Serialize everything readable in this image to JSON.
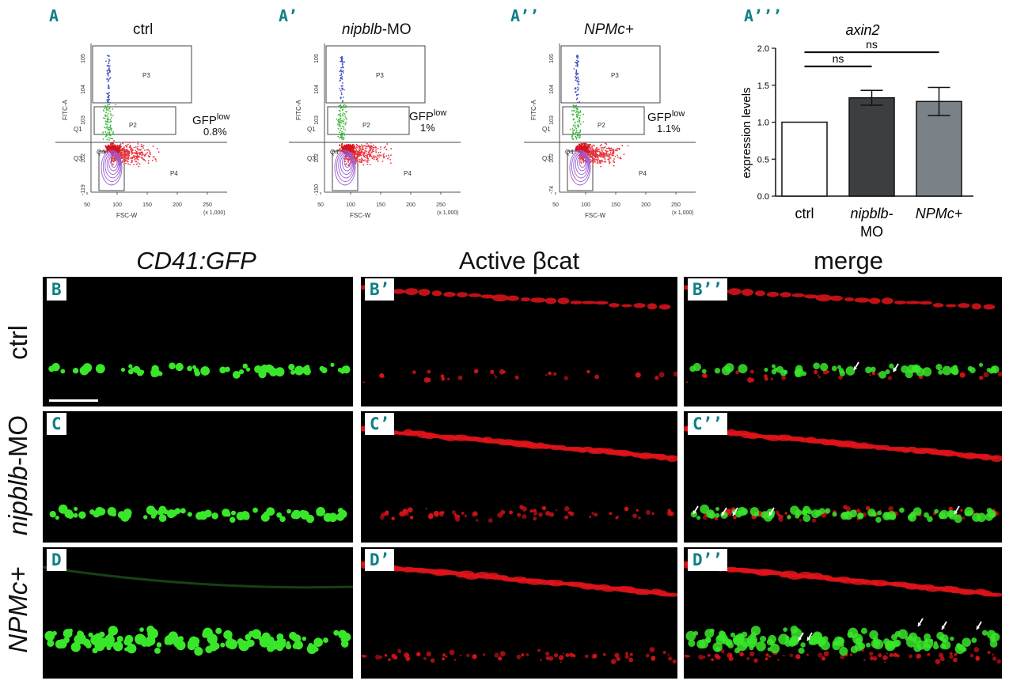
{
  "flow_panels": [
    {
      "label": "A",
      "title": "ctrl",
      "italic": false,
      "gfp_text": "GFP",
      "gfp_sup": "low",
      "pct": "0.8%",
      "y_axis": "FITC-A",
      "x_axis": "FSC-W",
      "x_scale": "(x 1,000)",
      "y_ticks": [
        "10^5",
        "10^4",
        "10^3",
        "10^2",
        "-119"
      ],
      "x_ticks": [
        "50",
        "100",
        "150",
        "200",
        "250"
      ],
      "gates": [
        "P3",
        "P2",
        "Q1",
        "Q3",
        "P4",
        "Q4"
      ]
    },
    {
      "label": "A’",
      "title_italic": "nipblb",
      "title_rest": "-MO",
      "italic": true,
      "gfp_text": "GFP",
      "gfp_sup": "low",
      "pct": "1%",
      "y_axis": "FITC-A",
      "x_axis": "FSC-W",
      "x_scale": "(x 1,000)",
      "y_ticks": [
        "10^5",
        "10^4",
        "10^3",
        "10^2",
        "-150"
      ],
      "x_ticks": [
        "50",
        "100",
        "150",
        "200",
        "250"
      ],
      "gates": [
        "P3",
        "P2",
        "Q1",
        "Q3",
        "P4",
        "Q4"
      ]
    },
    {
      "label": "A’’",
      "title": "NPMc+",
      "italic": true,
      "gfp_text": "GFP",
      "gfp_sup": "low",
      "pct": "1.1%",
      "y_axis": "FITC-A",
      "x_axis": "FSC-W",
      "x_scale": "(x 1,000)",
      "y_ticks": [
        "10^5",
        "10^4",
        "10^3",
        "10^2",
        "-74"
      ],
      "x_ticks": [
        "50",
        "100",
        "150",
        "200",
        "250"
      ],
      "gates": [
        "P3",
        "P2",
        "Q1",
        "Q3",
        "P4",
        "Q4"
      ]
    }
  ],
  "chart_data": {
    "type": "bar",
    "label": "A’’’",
    "title": "axin2",
    "ylabel": "expression levels",
    "categories": [
      "ctrl",
      "nipblb-MO",
      "NPMc+"
    ],
    "category_display": [
      [
        "ctrl"
      ],
      [
        "nipblb-",
        "MO"
      ],
      [
        "NPMc+"
      ]
    ],
    "values": [
      1.0,
      1.33,
      1.28
    ],
    "errors": [
      0,
      0.1,
      0.19
    ],
    "colors": [
      "#ffffff",
      "#3c3f42",
      "#7b8287"
    ],
    "ylim": [
      0,
      2.0
    ],
    "yticks": [
      "0.0",
      "0.5",
      "1.0",
      "1.5",
      "2.0"
    ],
    "significance": [
      {
        "pair": [
          "ctrl",
          "nipblb-MO"
        ],
        "text": "ns"
      },
      {
        "pair": [
          "ctrl",
          "NPMc+"
        ],
        "text": "ns"
      }
    ]
  },
  "columns": [
    {
      "text": "CD41:GFP",
      "italic": true
    },
    {
      "text": "Active βcat",
      "italic": false
    },
    {
      "text": "merge",
      "italic": false
    }
  ],
  "rows": [
    {
      "text": "ctrl",
      "italic": false,
      "labels": [
        "B",
        "B’",
        "B’’"
      ]
    },
    {
      "text_italic": "nipblb",
      "text_rest": "-MO",
      "labels": [
        "C",
        "C’",
        "C’’"
      ]
    },
    {
      "text": "NPMc+",
      "italic": true,
      "labels": [
        "D",
        "D’",
        "D’’"
      ]
    }
  ],
  "colors": {
    "label_teal": "#0f7f86",
    "gfp_green": "#39e62a",
    "bcat_red": "#e0141a",
    "flow_red": "#e8333d",
    "flow_blue": "#4050c0",
    "flow_purple": "#9a5ad0"
  }
}
